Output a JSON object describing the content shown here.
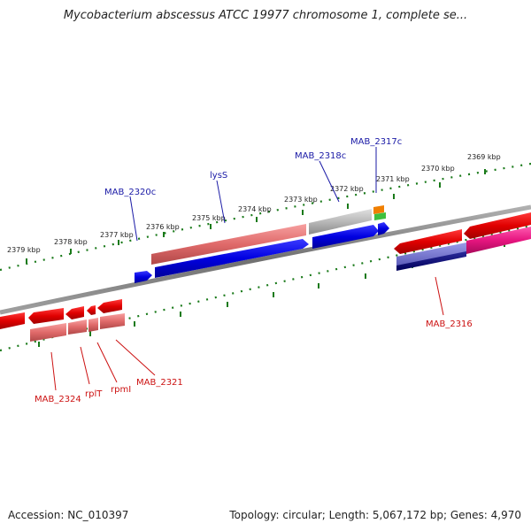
{
  "title": "Mycobacterium abscessus ATCC 19977 chromosome 1, complete se...",
  "footer": {
    "accession_label": "Accession:",
    "accession_value": "NC_010397",
    "summary": "Topology: circular; Length: 5,067,172 bp; Genes: 4,970"
  },
  "ruler_labels": [
    "2379 kbp",
    "2378 kbp",
    "2377 kbp",
    "2376 kbp",
    "2375 kbp",
    "2374 kbp",
    "2373 kbp",
    "2372 kbp",
    "2371 kbp",
    "2370 kbp",
    "2369 kbp"
  ],
  "gene_labels_top": [
    "MAB_2320c",
    "lysS",
    "MAB_2318c",
    "MAB_2317c"
  ],
  "gene_labels_bottom": [
    "MAB_2324",
    "rplT",
    "rpmI",
    "MAB_2321",
    "MAB_2316"
  ],
  "colors": {
    "label_blue": "#1a1aa6",
    "label_red": "#cc1111",
    "tick_green": "#1a7a1a",
    "backbone": "#808080"
  }
}
